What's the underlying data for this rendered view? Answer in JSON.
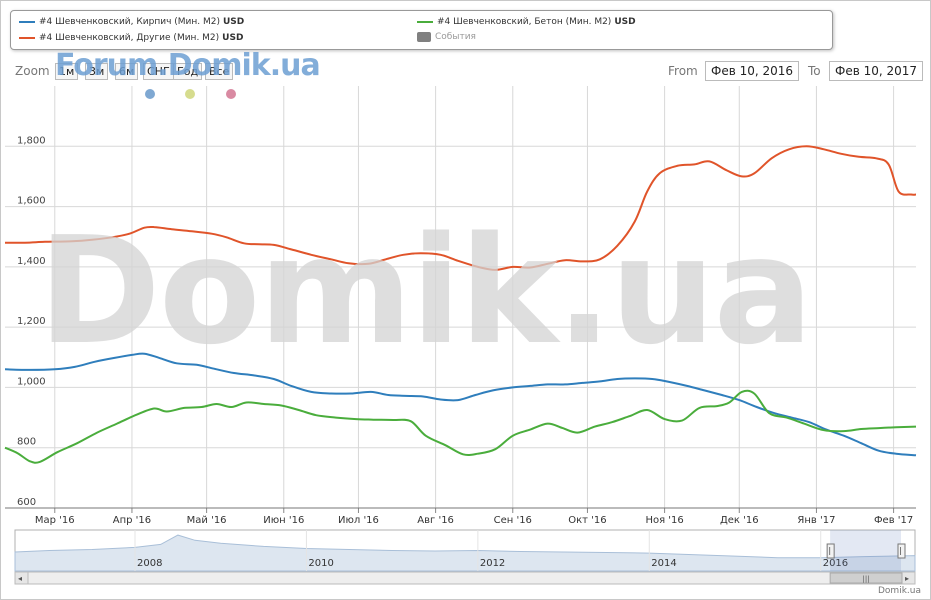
{
  "legend": {
    "items": [
      {
        "label": "#4 Шевченковский, Кирпич (Мин. М2)",
        "unit": "USD",
        "color": "#2f7ebc"
      },
      {
        "label": "#4 Шевченковский, Бетон (Мин. М2)",
        "unit": "USD",
        "color": "#4aad3c"
      },
      {
        "label": "#4 Шевченковский, Другие (Мин. М2)",
        "unit": "USD",
        "color": "#e0542a"
      },
      {
        "label": "События",
        "unit": "",
        "color": "#808080"
      }
    ]
  },
  "watermarks": {
    "top": "Forum.Domik.ua",
    "big": "Domik.ua",
    "brand": "Domik.ua"
  },
  "range_selector": {
    "zoom_label": "Zoom",
    "buttons": [
      "1м",
      "3м",
      "6м",
      "СНГ",
      "Год",
      "Все"
    ],
    "from_label": "From",
    "to_label": "To",
    "from_value": "Фев 10, 2016",
    "to_value": "Фев 10, 2017"
  },
  "event_markers": [
    "#7fa8d2",
    "#d6dc8e",
    "#d98aa2"
  ],
  "chart_data": {
    "type": "line",
    "ylim": [
      600,
      2000
    ],
    "yticks": [
      600,
      800,
      1000,
      1200,
      1400,
      1600,
      1800
    ],
    "ytick_labels": [
      "600",
      "800",
      "1,000",
      "1,200",
      "1,400",
      "1,600",
      "1,800"
    ],
    "x_range": [
      "2016-02-10",
      "2017-02-10"
    ],
    "xticks": [
      {
        "date": "2016-03-01",
        "label": "Мар '16"
      },
      {
        "date": "2016-04-01",
        "label": "Апр '16"
      },
      {
        "date": "2016-05-01",
        "label": "Май '16"
      },
      {
        "date": "2016-06-01",
        "label": "Июн '16"
      },
      {
        "date": "2016-07-01",
        "label": "Июл '16"
      },
      {
        "date": "2016-08-01",
        "label": "Авг '16"
      },
      {
        "date": "2016-09-01",
        "label": "Сен '16"
      },
      {
        "date": "2016-10-01",
        "label": "Окт '16"
      },
      {
        "date": "2016-11-01",
        "label": "Ноя '16"
      },
      {
        "date": "2016-12-01",
        "label": "Дек '16"
      },
      {
        "date": "2017-01-01",
        "label": "Янв '17"
      },
      {
        "date": "2017-02-01",
        "label": "Фев '17"
      }
    ],
    "series": [
      {
        "name": "#4 Шевченковский, Другие (Мин. М2)",
        "color": "#e0542a",
        "points": [
          [
            "2016-02-10",
            1480
          ],
          [
            "2016-02-18",
            1480
          ],
          [
            "2016-02-26",
            1483
          ],
          [
            "2016-03-08",
            1485
          ],
          [
            "2016-03-16",
            1490
          ],
          [
            "2016-03-24",
            1498
          ],
          [
            "2016-03-31",
            1510
          ],
          [
            "2016-04-06",
            1530
          ],
          [
            "2016-04-10",
            1532
          ],
          [
            "2016-04-17",
            1525
          ],
          [
            "2016-04-25",
            1518
          ],
          [
            "2016-05-03",
            1510
          ],
          [
            "2016-05-09",
            1498
          ],
          [
            "2016-05-16",
            1478
          ],
          [
            "2016-05-22",
            1475
          ],
          [
            "2016-05-28",
            1473
          ],
          [
            "2016-06-04",
            1458
          ],
          [
            "2016-06-12",
            1440
          ],
          [
            "2016-06-20",
            1425
          ],
          [
            "2016-06-27",
            1412
          ],
          [
            "2016-07-05",
            1410
          ],
          [
            "2016-07-12",
            1425
          ],
          [
            "2016-07-19",
            1440
          ],
          [
            "2016-07-26",
            1445
          ],
          [
            "2016-08-03",
            1440
          ],
          [
            "2016-08-10",
            1420
          ],
          [
            "2016-08-18",
            1400
          ],
          [
            "2016-08-25",
            1390
          ],
          [
            "2016-09-01",
            1400
          ],
          [
            "2016-09-08",
            1398
          ],
          [
            "2016-09-15",
            1410
          ],
          [
            "2016-09-22",
            1422
          ],
          [
            "2016-09-29",
            1418
          ],
          [
            "2016-10-06",
            1425
          ],
          [
            "2016-10-13",
            1470
          ],
          [
            "2016-10-20",
            1550
          ],
          [
            "2016-10-25",
            1650
          ],
          [
            "2016-10-30",
            1710
          ],
          [
            "2016-11-06",
            1735
          ],
          [
            "2016-11-13",
            1740
          ],
          [
            "2016-11-19",
            1750
          ],
          [
            "2016-11-26",
            1720
          ],
          [
            "2016-12-02",
            1700
          ],
          [
            "2016-12-07",
            1710
          ],
          [
            "2016-12-14",
            1760
          ],
          [
            "2016-12-21",
            1790
          ],
          [
            "2016-12-28",
            1800
          ],
          [
            "2017-01-04",
            1790
          ],
          [
            "2017-01-11",
            1775
          ],
          [
            "2017-01-18",
            1765
          ],
          [
            "2017-01-25",
            1760
          ],
          [
            "2017-01-30",
            1740
          ],
          [
            "2017-02-03",
            1650
          ],
          [
            "2017-02-08",
            1640
          ],
          [
            "2017-02-10",
            1640
          ]
        ]
      },
      {
        "name": "#4 Шевченковский, Кирпич (Мин. М2)",
        "color": "#2f7ebc",
        "points": [
          [
            "2016-02-10",
            1060
          ],
          [
            "2016-02-20",
            1058
          ],
          [
            "2016-03-01",
            1060
          ],
          [
            "2016-03-09",
            1068
          ],
          [
            "2016-03-17",
            1085
          ],
          [
            "2016-03-25",
            1098
          ],
          [
            "2016-04-01",
            1108
          ],
          [
            "2016-04-06",
            1112
          ],
          [
            "2016-04-12",
            1098
          ],
          [
            "2016-04-19",
            1080
          ],
          [
            "2016-04-27",
            1075
          ],
          [
            "2016-05-04",
            1062
          ],
          [
            "2016-05-12",
            1048
          ],
          [
            "2016-05-20",
            1040
          ],
          [
            "2016-05-28",
            1028
          ],
          [
            "2016-06-04",
            1005
          ],
          [
            "2016-06-12",
            985
          ],
          [
            "2016-06-20",
            980
          ],
          [
            "2016-06-28",
            980
          ],
          [
            "2016-07-06",
            985
          ],
          [
            "2016-07-13",
            975
          ],
          [
            "2016-07-20",
            972
          ],
          [
            "2016-07-27",
            970
          ],
          [
            "2016-08-03",
            960
          ],
          [
            "2016-08-10",
            958
          ],
          [
            "2016-08-17",
            975
          ],
          [
            "2016-08-24",
            990
          ],
          [
            "2016-09-01",
            1000
          ],
          [
            "2016-09-08",
            1005
          ],
          [
            "2016-09-15",
            1010
          ],
          [
            "2016-09-22",
            1010
          ],
          [
            "2016-09-29",
            1015
          ],
          [
            "2016-10-06",
            1020
          ],
          [
            "2016-10-13",
            1028
          ],
          [
            "2016-10-20",
            1030
          ],
          [
            "2016-10-27",
            1028
          ],
          [
            "2016-11-03",
            1018
          ],
          [
            "2016-11-10",
            1005
          ],
          [
            "2016-11-17",
            990
          ],
          [
            "2016-11-24",
            975
          ],
          [
            "2016-12-01",
            958
          ],
          [
            "2016-12-08",
            935
          ],
          [
            "2016-12-15",
            915
          ],
          [
            "2016-12-22",
            900
          ],
          [
            "2016-12-29",
            885
          ],
          [
            "2017-01-05",
            860
          ],
          [
            "2017-01-12",
            840
          ],
          [
            "2017-01-19",
            815
          ],
          [
            "2017-01-26",
            790
          ],
          [
            "2017-02-02",
            780
          ],
          [
            "2017-02-10",
            775
          ]
        ]
      },
      {
        "name": "#4 Шевченковский, Бетон (Мин. М2)",
        "color": "#4aad3c",
        "points": [
          [
            "2016-02-10",
            800
          ],
          [
            "2016-02-15",
            782
          ],
          [
            "2016-02-20",
            755
          ],
          [
            "2016-02-24",
            753
          ],
          [
            "2016-03-02",
            785
          ],
          [
            "2016-03-10",
            815
          ],
          [
            "2016-03-18",
            850
          ],
          [
            "2016-03-26",
            880
          ],
          [
            "2016-04-03",
            910
          ],
          [
            "2016-04-10",
            930
          ],
          [
            "2016-04-15",
            920
          ],
          [
            "2016-04-22",
            932
          ],
          [
            "2016-04-29",
            935
          ],
          [
            "2016-05-05",
            945
          ],
          [
            "2016-05-11",
            935
          ],
          [
            "2016-05-17",
            950
          ],
          [
            "2016-05-24",
            945
          ],
          [
            "2016-05-31",
            940
          ],
          [
            "2016-06-07",
            925
          ],
          [
            "2016-06-14",
            908
          ],
          [
            "2016-06-22",
            900
          ],
          [
            "2016-06-30",
            895
          ],
          [
            "2016-07-07",
            893
          ],
          [
            "2016-07-15",
            892
          ],
          [
            "2016-07-22",
            888
          ],
          [
            "2016-07-28",
            840
          ],
          [
            "2016-08-05",
            808
          ],
          [
            "2016-08-12",
            778
          ],
          [
            "2016-08-18",
            780
          ],
          [
            "2016-08-25",
            795
          ],
          [
            "2016-09-01",
            840
          ],
          [
            "2016-09-08",
            860
          ],
          [
            "2016-09-15",
            880
          ],
          [
            "2016-09-21",
            865
          ],
          [
            "2016-09-27",
            850
          ],
          [
            "2016-10-04",
            870
          ],
          [
            "2016-10-11",
            885
          ],
          [
            "2016-10-18",
            905
          ],
          [
            "2016-10-25",
            925
          ],
          [
            "2016-11-01",
            895
          ],
          [
            "2016-11-08",
            890
          ],
          [
            "2016-11-15",
            932
          ],
          [
            "2016-11-22",
            938
          ],
          [
            "2016-11-27",
            950
          ],
          [
            "2016-12-02",
            985
          ],
          [
            "2016-12-07",
            980
          ],
          [
            "2016-12-13",
            915
          ],
          [
            "2016-12-20",
            900
          ],
          [
            "2016-12-27",
            880
          ],
          [
            "2017-01-04",
            858
          ],
          [
            "2017-01-12",
            855
          ],
          [
            "2017-01-19",
            862
          ],
          [
            "2017-01-26",
            865
          ],
          [
            "2017-02-02",
            868
          ],
          [
            "2017-02-10",
            870
          ]
        ]
      }
    ]
  },
  "navigator": {
    "year_labels": [
      "2008",
      "2010",
      "2012",
      "2014",
      "2016"
    ],
    "x_range_years": [
      2006.6,
      2017.1
    ],
    "year_ticks": [
      2008,
      2010,
      2012,
      2014,
      2016
    ],
    "scrollbar_left": "◂",
    "scrollbar_right": "▸",
    "grip": "|||"
  }
}
